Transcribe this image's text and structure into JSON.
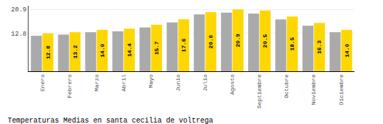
{
  "chart_data": {
    "type": "bar",
    "title": "Temperaturas Medias en santa cecilia de voltrega",
    "categories": [
      "Enero",
      "Febrero",
      "Marzo",
      "Abril",
      "Mayo",
      "Junio",
      "Julio",
      "Agosto",
      "Septiembre",
      "Octubre",
      "Noviembre",
      "Diciembre"
    ],
    "series": [
      {
        "color": "#AAAAAA",
        "values": [
          12.0,
          12.4,
          13.2,
          13.5,
          14.8,
          16.5,
          19.2,
          19.8,
          19.5,
          17.5,
          15.4,
          13.2
        ]
      },
      {
        "color": "#FFD700",
        "values": [
          12.8,
          13.2,
          14.0,
          14.4,
          15.7,
          17.6,
          20.0,
          20.9,
          20.5,
          18.5,
          16.3,
          14.0
        ],
        "value_labels": [
          "12.8",
          "13.2",
          "14.0",
          "14.4",
          "15.7",
          "17.6",
          "20.0",
          "20.9",
          "20.5",
          "18.5",
          "16.3",
          "14.0"
        ],
        "data_labels": true
      }
    ],
    "ylim": [
      0,
      22.154
    ],
    "yticks": [
      12.8,
      20.9
    ],
    "y2lim": [
      0,
      22.154
    ],
    "y2ticks": [
      12.8,
      20.9
    ],
    "grid": true
  }
}
